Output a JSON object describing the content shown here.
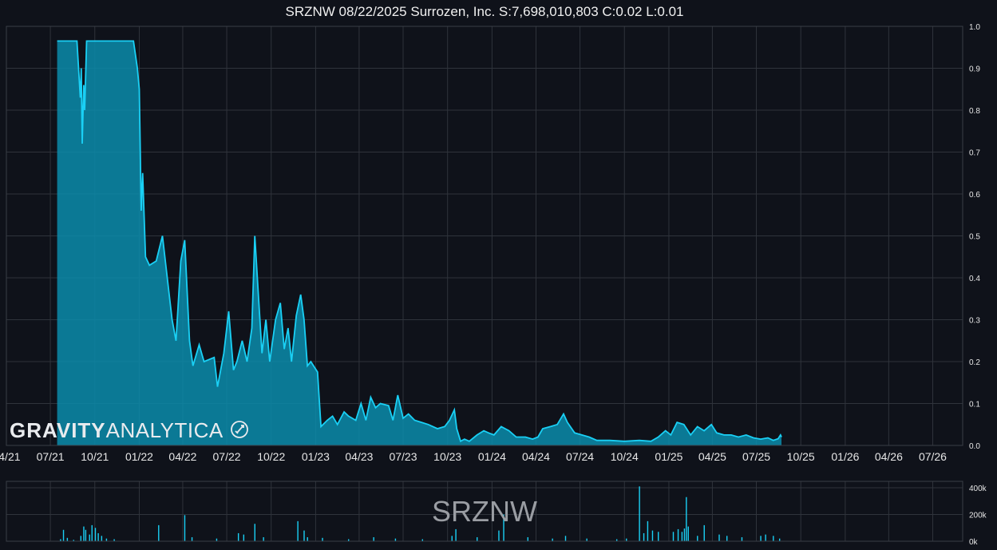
{
  "title": "SRZNW 08/22/2025 Surrozen, Inc. S:7,698,010,803 C:0.02 L:0.01",
  "watermark": "SRZNW",
  "logo": {
    "bold": "GRAVITY",
    "light": "ANALYTICA"
  },
  "colors": {
    "background": "#0f121a",
    "line": "#1ad0f5",
    "fill": "#0a8cab",
    "grid": "#2f333b",
    "volume": "#1ad0f5"
  },
  "chart_data": [
    {
      "type": "area",
      "name": "price",
      "x_ticks": [
        "04/21",
        "07/21",
        "10/21",
        "01/22",
        "04/22",
        "07/22",
        "10/22",
        "01/23",
        "04/23",
        "07/23",
        "10/23",
        "01/24",
        "04/24",
        "07/24",
        "10/24",
        "01/25",
        "04/25",
        "07/25",
        "10/25",
        "01/26",
        "04/26",
        "07/26"
      ],
      "y_ticks": [
        "0.0",
        "0.1",
        "0.2",
        "0.3",
        "0.4",
        "0.5",
        "0.6",
        "0.7",
        "0.8",
        "0.9",
        "1.0"
      ],
      "ylim": [
        0,
        1.0
      ],
      "xlim": [
        "2021-04-01",
        "2026-09-01"
      ],
      "grid": true,
      "points": [
        [
          "2021-07-15",
          0.965
        ],
        [
          "2021-08-25",
          0.965
        ],
        [
          "2021-09-01",
          0.83
        ],
        [
          "2021-09-03",
          0.9
        ],
        [
          "2021-09-05",
          0.72
        ],
        [
          "2021-09-08",
          0.86
        ],
        [
          "2021-09-10",
          0.8
        ],
        [
          "2021-09-14",
          0.965
        ],
        [
          "2021-12-20",
          0.965
        ],
        [
          "2021-12-28",
          0.9
        ],
        [
          "2022-01-01",
          0.85
        ],
        [
          "2022-01-05",
          0.56
        ],
        [
          "2022-01-08",
          0.65
        ],
        [
          "2022-01-14",
          0.45
        ],
        [
          "2022-01-22",
          0.43
        ],
        [
          "2022-02-05",
          0.44
        ],
        [
          "2022-02-18",
          0.5
        ],
        [
          "2022-03-10",
          0.3
        ],
        [
          "2022-03-18",
          0.25
        ],
        [
          "2022-03-28",
          0.44
        ],
        [
          "2022-04-05",
          0.49
        ],
        [
          "2022-04-15",
          0.25
        ],
        [
          "2022-04-22",
          0.19
        ],
        [
          "2022-05-05",
          0.24
        ],
        [
          "2022-05-15",
          0.2
        ],
        [
          "2022-06-05",
          0.21
        ],
        [
          "2022-06-12",
          0.14
        ],
        [
          "2022-06-25",
          0.22
        ],
        [
          "2022-07-05",
          0.32
        ],
        [
          "2022-07-15",
          0.18
        ],
        [
          "2022-07-22",
          0.2
        ],
        [
          "2022-08-02",
          0.25
        ],
        [
          "2022-08-12",
          0.2
        ],
        [
          "2022-08-22",
          0.28
        ],
        [
          "2022-08-28",
          0.5
        ],
        [
          "2022-09-05",
          0.35
        ],
        [
          "2022-09-12",
          0.22
        ],
        [
          "2022-09-20",
          0.3
        ],
        [
          "2022-09-28",
          0.2
        ],
        [
          "2022-10-10",
          0.3
        ],
        [
          "2022-10-20",
          0.34
        ],
        [
          "2022-10-28",
          0.23
        ],
        [
          "2022-11-05",
          0.28
        ],
        [
          "2022-11-12",
          0.2
        ],
        [
          "2022-11-22",
          0.31
        ],
        [
          "2022-12-01",
          0.36
        ],
        [
          "2022-12-08",
          0.3
        ],
        [
          "2022-12-15",
          0.19
        ],
        [
          "2022-12-22",
          0.2
        ],
        [
          "2023-01-05",
          0.175
        ],
        [
          "2023-01-12",
          0.045
        ],
        [
          "2023-01-25",
          0.06
        ],
        [
          "2023-02-05",
          0.07
        ],
        [
          "2023-02-15",
          0.05
        ],
        [
          "2023-03-01",
          0.08
        ],
        [
          "2023-03-10",
          0.07
        ],
        [
          "2023-03-25",
          0.06
        ],
        [
          "2023-04-05",
          0.1
        ],
        [
          "2023-04-15",
          0.06
        ],
        [
          "2023-04-25",
          0.115
        ],
        [
          "2023-05-05",
          0.09
        ],
        [
          "2023-05-15",
          0.1
        ],
        [
          "2023-06-01",
          0.095
        ],
        [
          "2023-06-10",
          0.06
        ],
        [
          "2023-06-20",
          0.12
        ],
        [
          "2023-07-01",
          0.065
        ],
        [
          "2023-07-12",
          0.075
        ],
        [
          "2023-07-25",
          0.06
        ],
        [
          "2023-08-08",
          0.055
        ],
        [
          "2023-08-22",
          0.05
        ],
        [
          "2023-09-10",
          0.04
        ],
        [
          "2023-09-25",
          0.045
        ],
        [
          "2023-10-05",
          0.06
        ],
        [
          "2023-10-15",
          0.085
        ],
        [
          "2023-10-20",
          0.04
        ],
        [
          "2023-10-28",
          0.01
        ],
        [
          "2023-11-05",
          0.015
        ],
        [
          "2023-11-15",
          0.01
        ],
        [
          "2023-12-01",
          0.025
        ],
        [
          "2023-12-15",
          0.035
        ],
        [
          "2023-12-25",
          0.03
        ],
        [
          "2024-01-05",
          0.025
        ],
        [
          "2024-01-20",
          0.045
        ],
        [
          "2024-02-05",
          0.035
        ],
        [
          "2024-02-20",
          0.02
        ],
        [
          "2024-03-10",
          0.02
        ],
        [
          "2024-03-25",
          0.015
        ],
        [
          "2024-04-05",
          0.02
        ],
        [
          "2024-04-15",
          0.04
        ],
        [
          "2024-05-01",
          0.045
        ],
        [
          "2024-05-15",
          0.05
        ],
        [
          "2024-05-28",
          0.075
        ],
        [
          "2024-06-05",
          0.055
        ],
        [
          "2024-06-20",
          0.03
        ],
        [
          "2024-07-05",
          0.025
        ],
        [
          "2024-07-20",
          0.02
        ],
        [
          "2024-08-05",
          0.012
        ],
        [
          "2024-09-01",
          0.012
        ],
        [
          "2024-10-01",
          0.01
        ],
        [
          "2024-11-01",
          0.012
        ],
        [
          "2024-11-25",
          0.01
        ],
        [
          "2024-12-10",
          0.02
        ],
        [
          "2024-12-25",
          0.035
        ],
        [
          "2025-01-05",
          0.025
        ],
        [
          "2025-01-18",
          0.055
        ],
        [
          "2025-02-01",
          0.05
        ],
        [
          "2025-02-15",
          0.025
        ],
        [
          "2025-03-01",
          0.045
        ],
        [
          "2025-03-15",
          0.035
        ],
        [
          "2025-03-30",
          0.05
        ],
        [
          "2025-04-10",
          0.03
        ],
        [
          "2025-04-25",
          0.025
        ],
        [
          "2025-05-10",
          0.025
        ],
        [
          "2025-05-25",
          0.02
        ],
        [
          "2025-06-10",
          0.025
        ],
        [
          "2025-06-25",
          0.018
        ],
        [
          "2025-07-10",
          0.015
        ],
        [
          "2025-07-25",
          0.018
        ],
        [
          "2025-08-05",
          0.012
        ],
        [
          "2025-08-15",
          0.016
        ],
        [
          "2025-08-20",
          0.025
        ],
        [
          "2025-08-22",
          0.02
        ]
      ]
    },
    {
      "type": "bar",
      "name": "volume",
      "y_ticks": [
        "0k",
        "200k",
        "400k"
      ],
      "ylim": [
        0,
        400000
      ],
      "grid": true,
      "bars": [
        [
          "2021-07-22",
          15000
        ],
        [
          "2021-07-28",
          85000
        ],
        [
          "2021-08-05",
          25000
        ],
        [
          "2021-08-18",
          10000
        ],
        [
          "2021-09-02",
          40000
        ],
        [
          "2021-09-08",
          110000
        ],
        [
          "2021-09-12",
          85000
        ],
        [
          "2021-09-20",
          50000
        ],
        [
          "2021-09-25",
          120000
        ],
        [
          "2021-10-02",
          100000
        ],
        [
          "2021-10-08",
          60000
        ],
        [
          "2021-10-15",
          40000
        ],
        [
          "2021-10-25",
          20000
        ],
        [
          "2021-11-10",
          15000
        ],
        [
          "2022-02-10",
          120000
        ],
        [
          "2022-04-05",
          195000
        ],
        [
          "2022-04-20",
          30000
        ],
        [
          "2022-06-10",
          20000
        ],
        [
          "2022-07-25",
          60000
        ],
        [
          "2022-08-05",
          50000
        ],
        [
          "2022-08-28",
          130000
        ],
        [
          "2022-09-15",
          30000
        ],
        [
          "2022-11-25",
          150000
        ],
        [
          "2022-12-08",
          80000
        ],
        [
          "2022-12-15",
          30000
        ],
        [
          "2023-01-15",
          25000
        ],
        [
          "2023-03-10",
          15000
        ],
        [
          "2023-05-01",
          30000
        ],
        [
          "2023-06-15",
          20000
        ],
        [
          "2023-08-10",
          15000
        ],
        [
          "2023-10-10",
          40000
        ],
        [
          "2023-10-18",
          90000
        ],
        [
          "2023-12-01",
          30000
        ],
        [
          "2024-01-15",
          80000
        ],
        [
          "2024-01-25",
          200000
        ],
        [
          "2024-03-15",
          30000
        ],
        [
          "2024-05-05",
          20000
        ],
        [
          "2024-06-01",
          40000
        ],
        [
          "2024-07-15",
          20000
        ],
        [
          "2024-09-15",
          15000
        ],
        [
          "2024-10-05",
          20000
        ],
        [
          "2024-11-01",
          410000
        ],
        [
          "2024-11-10",
          60000
        ],
        [
          "2024-11-18",
          150000
        ],
        [
          "2024-11-28",
          80000
        ],
        [
          "2024-12-10",
          70000
        ],
        [
          "2025-01-10",
          70000
        ],
        [
          "2025-01-20",
          90000
        ],
        [
          "2025-01-28",
          70000
        ],
        [
          "2025-02-02",
          95000
        ],
        [
          "2025-02-06",
          330000
        ],
        [
          "2025-02-10",
          110000
        ],
        [
          "2025-03-01",
          40000
        ],
        [
          "2025-03-15",
          120000
        ],
        [
          "2025-04-15",
          50000
        ],
        [
          "2025-05-01",
          40000
        ],
        [
          "2025-06-01",
          30000
        ],
        [
          "2025-07-10",
          40000
        ],
        [
          "2025-07-20",
          50000
        ],
        [
          "2025-08-05",
          40000
        ],
        [
          "2025-08-18",
          20000
        ]
      ]
    }
  ]
}
